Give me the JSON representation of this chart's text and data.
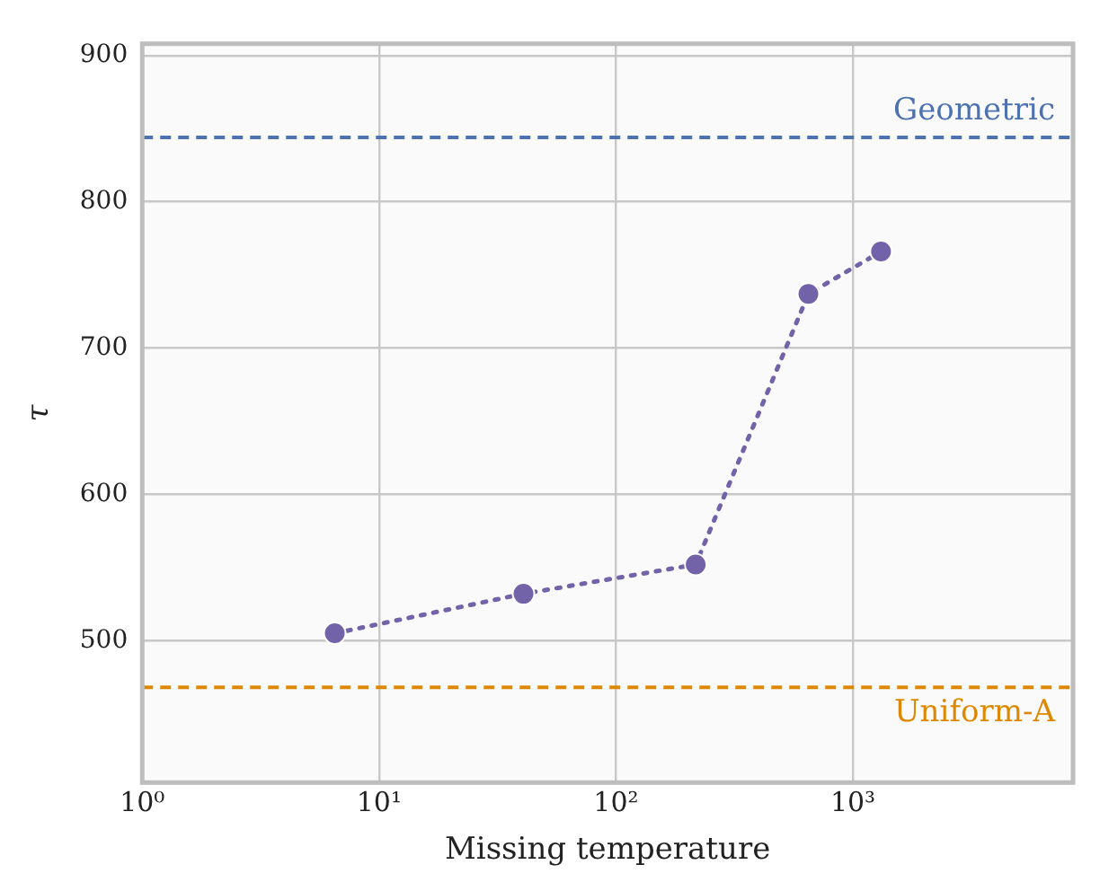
{
  "chart_data": {
    "type": "line",
    "xlabel": "Missing temperature",
    "ylabel": "τ",
    "log": "x",
    "xlim": [
      1,
      8500
    ],
    "xticks": [
      {
        "value": 1,
        "label": "10⁰"
      },
      {
        "value": 10,
        "label": "10¹"
      },
      {
        "value": 100,
        "label": "10²"
      },
      {
        "value": 1000,
        "label": "10³"
      }
    ],
    "ylim": [
      403,
      908
    ],
    "yticks": [
      500,
      600,
      700,
      800,
      900
    ],
    "grid": true,
    "marker": "circle",
    "line_style": "dotted",
    "x": [
      6.5,
      40.7,
      217,
      649,
      1315
    ],
    "series": [
      {
        "color": "#7262a8",
        "values": [
          505,
          532,
          552,
          737,
          766
        ]
      }
    ],
    "ref_lines": [
      {
        "axis": "y",
        "value": 844,
        "label": "Geometric",
        "color": "#4c72b0",
        "line_style": "dashed"
      },
      {
        "axis": "y",
        "value": 468,
        "label": "Uniform-A",
        "color": "#dd8800",
        "line_style": "dashed"
      }
    ]
  }
}
